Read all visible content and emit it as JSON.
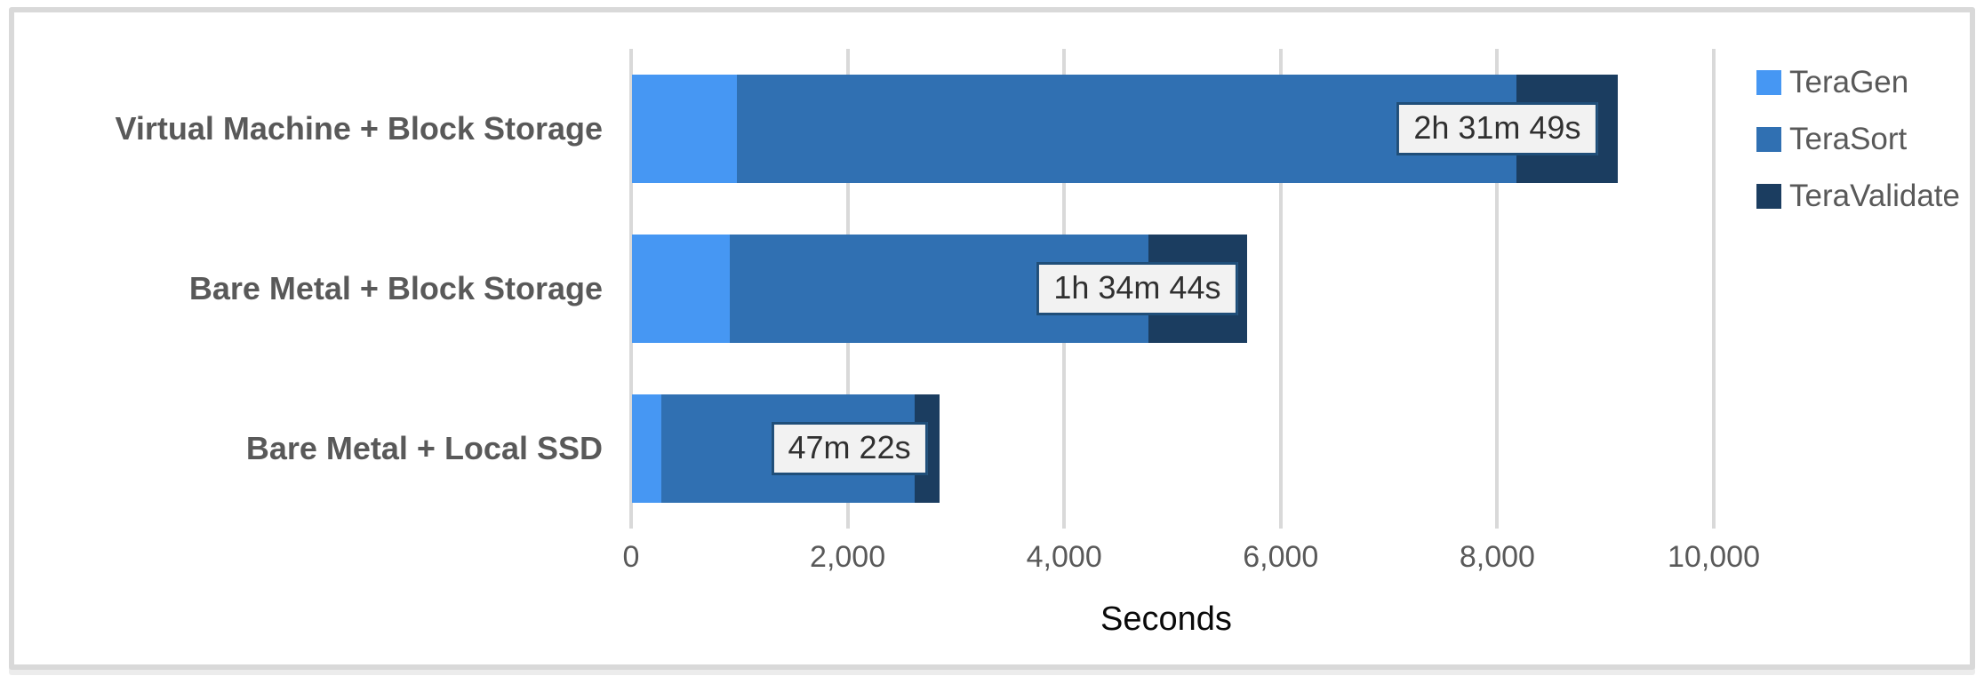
{
  "chart_data": {
    "type": "bar",
    "orientation": "horizontal",
    "stacked": true,
    "title": "",
    "xlabel": "Seconds",
    "ylabel": "",
    "categories": [
      "Virtual Machine + Block Storage",
      "Bare Metal + Block Storage",
      "Bare Metal + Local SSD"
    ],
    "series": [
      {
        "name": "TeraGen",
        "color": "#4697F3",
        "values": [
          970,
          900,
          270
        ]
      },
      {
        "name": "TeraSort",
        "color": "#3070B2",
        "values": [
          7200,
          3870,
          2340
        ]
      },
      {
        "name": "TeraValidate",
        "color": "#1B3D60",
        "values": [
          939,
          914,
          232
        ]
      }
    ],
    "totals_seconds": [
      9109,
      5684,
      2842
    ],
    "bar_labels": [
      {
        "text": "2h 31m 49s",
        "center_seconds": 8000
      },
      {
        "text": "1h 34m 44s",
        "center_seconds": 4675
      },
      {
        "text": "47m 22s",
        "center_seconds": 2016
      }
    ],
    "x_ticks": [
      "0",
      "2,000",
      "4,000",
      "6,000",
      "8,000",
      "10,000"
    ],
    "x_tick_values": [
      0,
      2000,
      4000,
      6000,
      8000,
      10000
    ],
    "xlim": [
      0,
      10060
    ],
    "grid": true,
    "legend_position": "right",
    "legend_entries": [
      "TeraGen",
      "TeraSort",
      "TeraValidate"
    ]
  },
  "colors": {
    "teragen": "#4697F3",
    "terasort": "#3070B2",
    "teravalidate": "#1B3D60",
    "gridline": "#D9D9D9",
    "panel_border": "#D9D9D9",
    "axis_text": "#595959",
    "category_text": "#595959",
    "label_box_fill": "#F2F2F2",
    "label_box_border": "#1F4E79",
    "label_box_text": "#303030",
    "axis_title_text": "#0a0a0a",
    "background": "#FFFFFF"
  }
}
